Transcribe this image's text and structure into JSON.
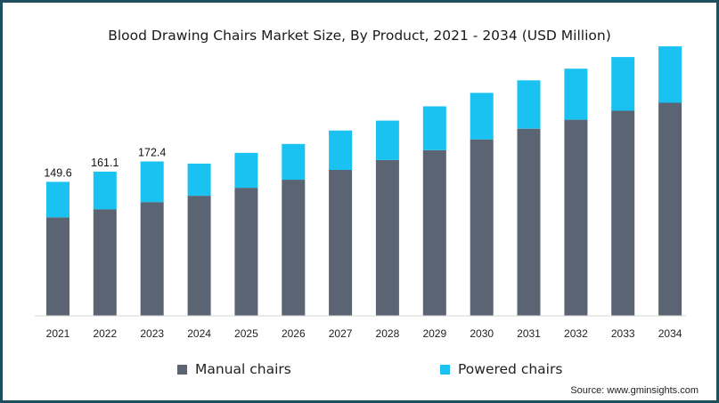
{
  "chart_data": {
    "type": "bar",
    "stacked": true,
    "title": "Blood Drawing Chairs Market Size, By Product, 2021 - 2034 (USD Million)",
    "xlabel": "",
    "ylabel": "",
    "categories": [
      "2021",
      "2022",
      "2023",
      "2024",
      "2025",
      "2026",
      "2027",
      "2028",
      "2029",
      "2030",
      "2031",
      "2032",
      "2033",
      "2034"
    ],
    "series": [
      {
        "name": "Manual chairs",
        "color": "#5a6472",
        "values": [
          110,
          119,
          127,
          134,
          143,
          152,
          163,
          174,
          185,
          197,
          209,
          219,
          229,
          238
        ]
      },
      {
        "name": "Powered chairs",
        "color": "#19c2f0",
        "values": [
          39.6,
          42.1,
          45.4,
          36,
          39,
          40,
          44,
          44,
          49,
          52,
          54,
          57,
          60,
          63
        ]
      }
    ],
    "data_labels": [
      {
        "category": "2021",
        "text": "149.6"
      },
      {
        "category": "2022",
        "text": "161.1"
      },
      {
        "category": "2023",
        "text": "172.4"
      }
    ],
    "ylim": [
      0,
      310
    ],
    "grid": false,
    "legend_position": "bottom",
    "source": "Source: www.gminsights.com"
  }
}
